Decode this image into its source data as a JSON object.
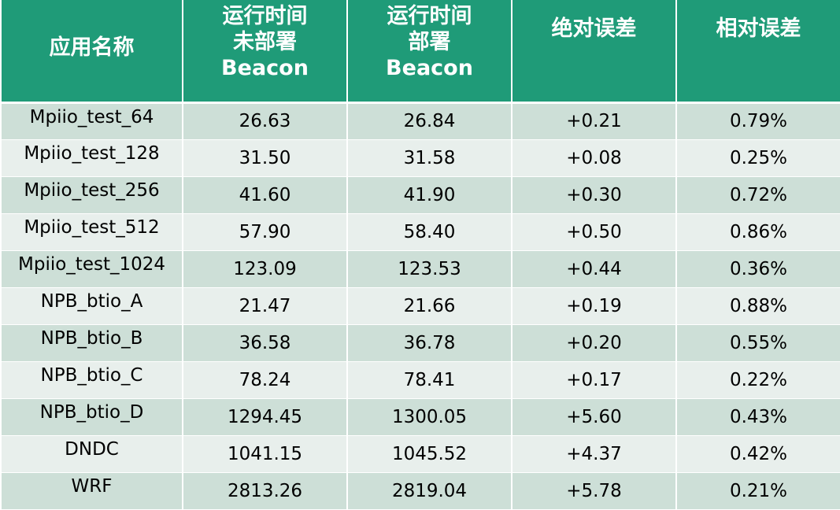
{
  "table": {
    "headers": [
      [
        "应用名称"
      ],
      [
        "运行时间",
        "未部署",
        "Beacon"
      ],
      [
        "运行时间",
        "部署",
        "Beacon"
      ],
      [
        "绝对误差"
      ],
      [
        "相对误差"
      ]
    ],
    "rows": [
      [
        "Mpiio_test_64",
        "26.63",
        "26.84",
        "+0.21",
        "0.79%"
      ],
      [
        "Mpiio_test_128",
        "31.50",
        "31.58",
        "+0.08",
        "0.25%"
      ],
      [
        "Mpiio_test_256",
        "41.60",
        "41.90",
        "+0.30",
        "0.72%"
      ],
      [
        "Mpiio_test_512",
        "57.90",
        "58.40",
        "+0.50",
        "0.86%"
      ],
      [
        "Mpiio_test_1024",
        "123.09",
        "123.53",
        "+0.44",
        "0.36%"
      ],
      [
        "NPB_btio_A",
        "21.47",
        "21.66",
        "+0.19",
        "0.88%"
      ],
      [
        "NPB_btio_B",
        "36.58",
        "36.78",
        "+0.20",
        "0.55%"
      ],
      [
        "NPB_btio_C",
        "78.24",
        "78.41",
        "+0.17",
        "0.22%"
      ],
      [
        "NPB_btio_D",
        "1294.45",
        "1300.05",
        "+5.60",
        "0.43%"
      ],
      [
        "DNDC",
        "1041.15",
        "1045.52",
        "+4.37",
        "0.42%"
      ],
      [
        "WRF",
        "2813.26",
        "2819.04",
        "+5.78",
        "0.21%"
      ]
    ],
    "colors": {
      "header_bg": "#1f9b78",
      "row_dark": "#cddfd7",
      "row_light": "#e8efec",
      "header_text": "#ffffff"
    }
  }
}
